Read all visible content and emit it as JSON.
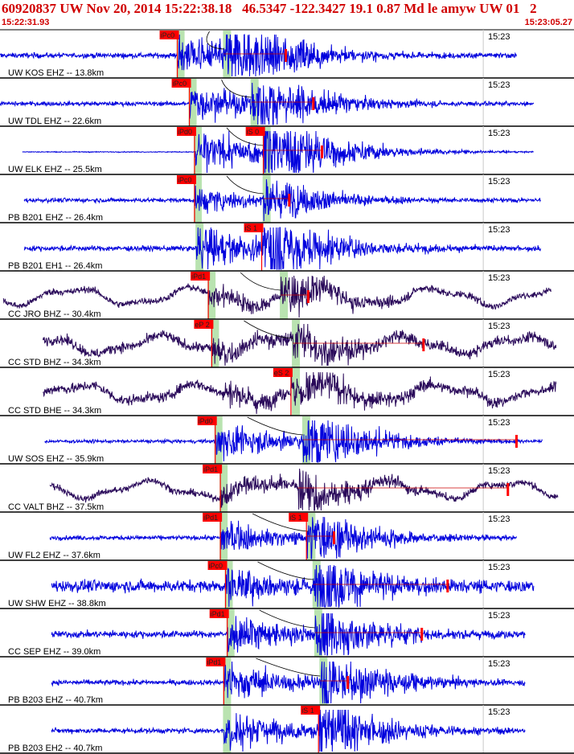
{
  "header": {
    "title": "60920837 UW Nov 20, 2014 15:22:38.18   46.5347 -122.3427 19.1 0.87 Md le amyw UW 01   2",
    "start_time": "15:22:31.93",
    "end_time": "15:23:05.27"
  },
  "colors": {
    "title": "#d00000",
    "trace_short_period": "#0000dd",
    "trace_broadband": "#2a0a5a",
    "pick_box": "#ff0000",
    "pick_band": "#b9e3b0",
    "separator": "#000000",
    "minute_mark": "#c8c8c8"
  },
  "chart_data": {
    "type": "seismogram_section",
    "time_window": {
      "start": "15:22:31.93",
      "end": "15:23:05.27",
      "duration_s": 33.34
    },
    "minute_label": "15:23",
    "minute_time_s": 28.07,
    "traces": [
      {
        "label": "UW KOS EHZ -- 13.8km",
        "kind": "sp",
        "data_start_s": 0.0,
        "data_end_s": 30.0,
        "p_pick": "iPc0",
        "p_time_s": 10.3,
        "p_band_s": 10.3,
        "s_pick": "",
        "s_time_s": null,
        "s_band_s": 13.0,
        "coda_s": 16.6,
        "amp": 1.0,
        "noise": 0.06
      },
      {
        "label": "UW TDL EHZ -- 22.6km",
        "kind": "sp",
        "data_start_s": 0.0,
        "data_end_s": 31.0,
        "p_pick": "iPc0",
        "p_time_s": 11.0,
        "p_band_s": 11.0,
        "s_pick": "",
        "s_time_s": null,
        "s_band_s": 14.6,
        "coda_s": 18.2,
        "amp": 0.85,
        "noise": 0.05
      },
      {
        "label": "UW ELK EHZ -- 25.5km",
        "kind": "sp",
        "data_start_s": 1.3,
        "data_end_s": 31.0,
        "p_pick": "iPd0",
        "p_time_s": 11.3,
        "p_band_s": 11.3,
        "s_pick": "iS 0",
        "s_time_s": 15.3,
        "s_band_s": 15.3,
        "coda_s": 18.7,
        "amp": 1.0,
        "noise": 0.01
      },
      {
        "label": "PB B201 EHZ -- 26.4km",
        "kind": "sp",
        "data_start_s": 1.4,
        "data_end_s": 31.4,
        "p_pick": "iPc0",
        "p_time_s": 11.3,
        "p_band_s": 11.3,
        "s_pick": "",
        "s_time_s": null,
        "s_band_s": 15.3,
        "coda_s": 16.8,
        "amp": 0.6,
        "noise": 0.05
      },
      {
        "label": "PB B201 EH1 -- 26.4km",
        "kind": "sp",
        "data_start_s": 1.4,
        "data_end_s": 31.4,
        "p_pick": "",
        "p_time_s": null,
        "p_band_s": 11.4,
        "s_pick": "iS 1",
        "s_time_s": 15.2,
        "s_band_s": null,
        "coda_s": null,
        "amp": 1.0,
        "noise": 0.06
      },
      {
        "label": "CC JRO BHZ -- 30.4km",
        "kind": "bb",
        "data_start_s": 0.2,
        "data_end_s": 32.0,
        "p_pick": "iPd1",
        "p_time_s": 12.1,
        "p_band_s": 12.1,
        "s_pick": "",
        "s_time_s": null,
        "s_band_s": 16.3,
        "coda_s": 17.9,
        "amp": 0.55,
        "noise": 0.08
      },
      {
        "label": "CC STD BHZ -- 34.3km",
        "kind": "bb",
        "data_start_s": 2.5,
        "data_end_s": 32.3,
        "p_pick": "eP 2",
        "p_time_s": 12.3,
        "p_band_s": 12.3,
        "s_pick": "",
        "s_time_s": null,
        "s_band_s": 17.0,
        "coda_s": 24.6,
        "amp": 0.6,
        "noise": 0.12
      },
      {
        "label": "CC STD BHE -- 34.3km",
        "kind": "bb",
        "data_start_s": 2.5,
        "data_end_s": 32.3,
        "p_pick": "",
        "p_time_s": null,
        "p_band_s": null,
        "s_pick": "eS 2",
        "s_time_s": 16.9,
        "s_band_s": 17.0,
        "coda_s": null,
        "amp": 0.6,
        "noise": 0.12
      },
      {
        "label": "UW SOS EHZ -- 35.9km",
        "kind": "sp",
        "data_start_s": 2.6,
        "data_end_s": 31.5,
        "p_pick": "iPd0",
        "p_time_s": 12.5,
        "p_band_s": 12.5,
        "s_pick": "",
        "s_time_s": null,
        "s_band_s": 17.6,
        "coda_s": 30.0,
        "amp": 0.85,
        "noise": 0.04
      },
      {
        "label": "CC VALT BHZ -- 37.5km",
        "kind": "bb",
        "data_start_s": 2.9,
        "data_end_s": 32.4,
        "p_pick": "iPd1",
        "p_time_s": 12.8,
        "p_band_s": 12.8,
        "s_pick": "",
        "s_time_s": null,
        "s_band_s": null,
        "coda_s": 29.5,
        "amp": 0.55,
        "noise": 0.08
      },
      {
        "label": "UW FL2 EHZ -- 37.6km",
        "kind": "sp",
        "data_start_s": 2.9,
        "data_end_s": 30.0,
        "p_pick": "iPd1",
        "p_time_s": 12.8,
        "p_band_s": 12.8,
        "s_pick": "iS 1",
        "s_time_s": 17.8,
        "s_band_s": 17.9,
        "coda_s": 19.4,
        "amp": 0.75,
        "noise": 0.05
      },
      {
        "label": "UW SHW EHZ -- 38.8km",
        "kind": "sp",
        "data_start_s": 3.0,
        "data_end_s": 31.0,
        "p_pick": "iPc0",
        "p_time_s": 13.1,
        "p_band_s": 13.1,
        "s_pick": "",
        "s_time_s": null,
        "s_band_s": 18.2,
        "coda_s": 26.0,
        "amp": 0.9,
        "noise": 0.14
      },
      {
        "label": "CC SEP EHZ -- 39.0km",
        "kind": "sp",
        "data_start_s": 3.0,
        "data_end_s": 30.5,
        "p_pick": "iPd1",
        "p_time_s": 13.2,
        "p_band_s": 13.2,
        "s_pick": "",
        "s_time_s": null,
        "s_band_s": 18.3,
        "coda_s": 24.5,
        "amp": 0.85,
        "noise": 0.08
      },
      {
        "label": "PB B203 EHZ -- 40.7km",
        "kind": "sp",
        "data_start_s": 3.0,
        "data_end_s": 30.5,
        "p_pick": "iPd1",
        "p_time_s": 13.0,
        "p_band_s": 13.0,
        "s_pick": "",
        "s_time_s": null,
        "s_band_s": 18.6,
        "coda_s": 20.2,
        "amp": 0.9,
        "noise": 0.06
      },
      {
        "label": "PB B203 EH2 -- 40.7km",
        "kind": "sp",
        "data_start_s": 3.0,
        "data_end_s": 30.5,
        "p_pick": "",
        "p_time_s": null,
        "p_band_s": 13.0,
        "s_pick": "iS 1",
        "s_time_s": 18.5,
        "s_band_s": null,
        "coda_s": null,
        "amp": 0.9,
        "noise": 0.06
      }
    ]
  }
}
